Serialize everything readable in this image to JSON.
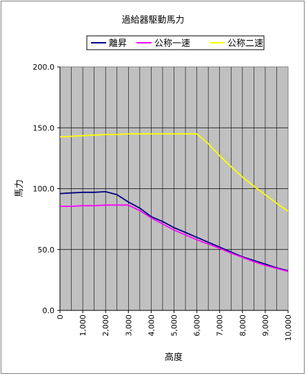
{
  "chart_data": {
    "type": "line",
    "title": "過給器駆動馬力",
    "xlabel": "高度",
    "ylabel": "馬力",
    "xlim": [
      0,
      10000
    ],
    "ylim": [
      0,
      200
    ],
    "x_ticks": [
      "0",
      "1,000",
      "2,000",
      "3,000",
      "4,000",
      "5,000",
      "6,000",
      "7,000",
      "8,000",
      "9,000",
      "10,000"
    ],
    "y_ticks": [
      "0.0",
      "50.0",
      "100.0",
      "150.0",
      "200.0"
    ],
    "grid": true,
    "legend_position": "top",
    "series": [
      {
        "name": "離昇",
        "color": "#000080",
        "x": [
          0,
          500,
          1000,
          1500,
          2000,
          2500,
          3000,
          3500,
          4000,
          4500,
          5000,
          5500,
          6000,
          6500,
          7000,
          7500,
          8000,
          8500,
          9000,
          9500,
          10000
        ],
        "y": [
          96,
          96.5,
          97,
          97,
          97.5,
          95,
          89,
          84,
          77,
          73,
          68,
          64,
          60,
          56,
          52,
          48,
          44,
          41,
          38,
          35,
          32.5
        ]
      },
      {
        "name": "公称一速",
        "color": "#ff00ff",
        "x": [
          0,
          500,
          1000,
          1500,
          2000,
          2500,
          3000,
          3500,
          4000,
          4500,
          5000,
          5500,
          6000,
          6500,
          7000,
          7500,
          8000,
          8500,
          9000,
          9500,
          10000
        ],
        "y": [
          85.5,
          85.5,
          86,
          86,
          86.5,
          86.5,
          86.5,
          82,
          76,
          71,
          66,
          62,
          58,
          54.5,
          51,
          47,
          43.5,
          40,
          37,
          34.5,
          32
        ]
      },
      {
        "name": "公称二速",
        "color": "#ffff00",
        "x": [
          0,
          500,
          1000,
          1500,
          2000,
          2500,
          3000,
          3500,
          4000,
          4500,
          5000,
          5500,
          6000,
          6500,
          7000,
          7500,
          8000,
          8500,
          9000,
          9500,
          10000
        ],
        "y": [
          142.5,
          143,
          143.5,
          144,
          144.5,
          144.5,
          145,
          145,
          145,
          145,
          145,
          145,
          145,
          137,
          127,
          118,
          109.5,
          102,
          95,
          88,
          81.5
        ]
      }
    ]
  }
}
